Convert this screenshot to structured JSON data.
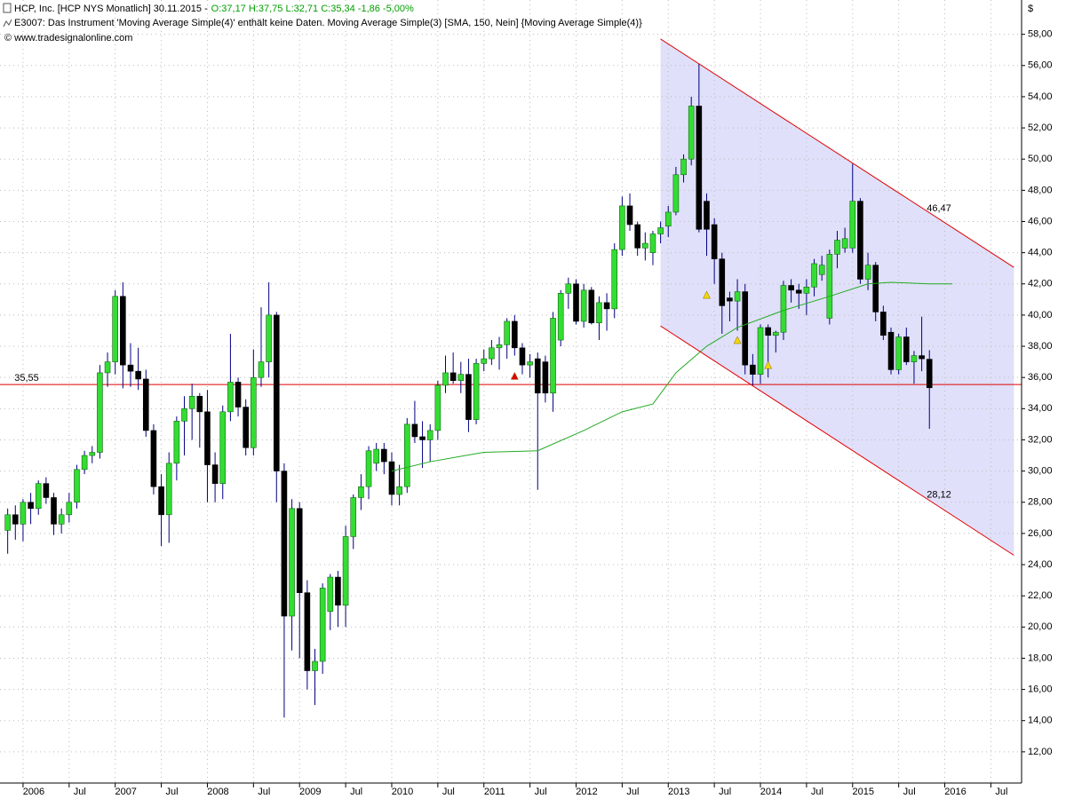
{
  "chart_data": {
    "type": "candlestick",
    "title": "HCP, Inc. [HCP NYS  Monatlich] 30.11.2015 -",
    "quote": "O:37,17 H:37,75 L:32,71 C:35,34 -1,86 -5,00%",
    "subtitle": "E3007: Das Instrument 'Moving Average Simple(4)' enthält keine Daten. Moving Average Simple(3) [SMA, 150, Nein] {Moving Average Simple(4)}",
    "source": "© www.tradesignalonline.com",
    "currency": "$",
    "x": [
      "2005-11",
      "2005-12",
      "2006-01",
      "2006-02",
      "2006-03",
      "2006-04",
      "2006-05",
      "2006-06",
      "2006-07",
      "2006-08",
      "2006-09",
      "2006-10",
      "2006-11",
      "2006-12",
      "2007-01",
      "2007-02",
      "2007-03",
      "2007-04",
      "2007-05",
      "2007-06",
      "2007-07",
      "2007-08",
      "2007-09",
      "2007-10",
      "2007-11",
      "2007-12",
      "2008-01",
      "2008-02",
      "2008-03",
      "2008-04",
      "2008-05",
      "2008-06",
      "2008-07",
      "2008-08",
      "2008-09",
      "2008-10",
      "2008-11",
      "2008-12",
      "2009-01",
      "2009-02",
      "2009-03",
      "2009-04",
      "2009-05",
      "2009-06",
      "2009-07",
      "2009-08",
      "2009-09",
      "2009-10",
      "2009-11",
      "2009-12",
      "2010-01",
      "2010-02",
      "2010-03",
      "2010-04",
      "2010-05",
      "2010-06",
      "2010-07",
      "2010-08",
      "2010-09",
      "2010-10",
      "2010-11",
      "2010-12",
      "2011-01",
      "2011-02",
      "2011-03",
      "2011-04",
      "2011-05",
      "2011-06",
      "2011-07",
      "2011-08",
      "2011-09",
      "2011-10",
      "2011-11",
      "2011-12",
      "2012-01",
      "2012-02",
      "2012-03",
      "2012-04",
      "2012-05",
      "2012-06",
      "2012-07",
      "2012-08",
      "2012-09",
      "2012-10",
      "2012-11",
      "2012-12",
      "2013-01",
      "2013-02",
      "2013-03",
      "2013-04",
      "2013-05",
      "2013-06",
      "2013-07",
      "2013-08",
      "2013-09",
      "2013-10",
      "2013-11",
      "2013-12",
      "2014-01",
      "2014-02",
      "2014-03",
      "2014-04",
      "2014-05",
      "2014-06",
      "2014-07",
      "2014-08",
      "2014-09",
      "2014-10",
      "2014-11",
      "2014-12",
      "2015-01",
      "2015-02",
      "2015-03",
      "2015-04",
      "2015-05",
      "2015-06",
      "2015-07",
      "2015-08",
      "2015-09",
      "2015-10",
      "2015-11"
    ],
    "open": [
      26.2,
      27.2,
      26.6,
      28.0,
      27.6,
      29.2,
      28.3,
      26.6,
      27.2,
      28.0,
      30.1,
      31.0,
      31.2,
      36.3,
      37.0,
      41.2,
      36.8,
      36.4,
      35.9,
      32.6,
      29.0,
      27.2,
      30.5,
      33.2,
      34.0,
      34.8,
      33.8,
      30.4,
      29.2,
      33.8,
      35.7,
      34.1,
      31.5,
      36.0,
      37.0,
      40.0,
      30.0,
      20.7,
      27.6,
      22.2,
      17.2,
      17.8,
      21.0,
      23.2,
      21.4,
      25.8,
      28.3,
      29.0,
      30.5,
      31.4,
      30.6,
      28.5,
      29.0,
      33.0,
      32.2,
      32.0,
      32.6,
      35.5,
      36.3,
      35.8,
      36.2,
      33.3,
      36.9,
      37.2,
      37.9,
      38.1,
      39.6,
      37.9,
      36.8,
      37.2,
      37.0,
      35.0,
      38.4,
      41.4,
      42.0,
      39.6,
      41.6,
      39.5,
      40.8,
      40.4,
      44.2,
      47.0,
      45.8,
      44.3,
      44.0,
      45.2,
      45.7,
      46.6,
      49.0,
      50.0,
      53.4,
      47.3,
      45.8,
      43.6,
      41.1,
      40.9,
      41.5,
      36.8,
      36.2,
      39.2,
      38.7,
      38.9,
      41.9,
      41.6,
      41.4,
      41.8,
      42.6,
      39.8,
      43.9,
      44.3,
      44.3,
      47.3,
      42.3,
      43.2,
      40.2,
      38.9,
      36.5,
      38.6,
      37.0,
      37.4,
      37.17
    ],
    "high": [
      27.6,
      27.8,
      28.2,
      28.6,
      29.4,
      29.6,
      28.6,
      27.6,
      28.6,
      30.4,
      31.3,
      31.6,
      36.8,
      37.6,
      41.6,
      42.1,
      38.2,
      37.9,
      36.5,
      33.0,
      29.8,
      31.2,
      33.5,
      34.8,
      35.6,
      35.0,
      35.2,
      31.2,
      34.2,
      38.8,
      36.0,
      34.6,
      37.8,
      40.5,
      42.1,
      40.2,
      30.5,
      28.2,
      28.0,
      23.0,
      18.6,
      22.8,
      23.4,
      23.6,
      26.5,
      28.5,
      29.8,
      31.6,
      31.8,
      31.8,
      31.2,
      30.4,
      33.4,
      34.5,
      33.2,
      33.0,
      35.8,
      37.4,
      37.6,
      37.0,
      37.2,
      37.2,
      37.8,
      38.4,
      38.6,
      39.8,
      40.0,
      38.2,
      37.5,
      37.6,
      37.4,
      40.2,
      41.6,
      42.4,
      42.3,
      42.0,
      41.8,
      41.2,
      41.4,
      44.6,
      47.6,
      47.8,
      46.0,
      45.3,
      45.4,
      46.0,
      47.0,
      49.5,
      50.3,
      54.0,
      56.1,
      47.8,
      46.2,
      44.0,
      41.5,
      42.3,
      42.0,
      37.5,
      39.4,
      39.4,
      39.0,
      42.2,
      42.3,
      42.0,
      42.3,
      43.6,
      43.8,
      44.2,
      45.4,
      45.6,
      49.7,
      47.5,
      44.0,
      43.4,
      40.6,
      39.2,
      38.8,
      39.2,
      37.7,
      39.9,
      37.75
    ],
    "low": [
      24.7,
      25.6,
      25.5,
      26.6,
      27.2,
      27.9,
      25.9,
      26.0,
      26.7,
      27.6,
      29.8,
      30.5,
      30.8,
      35.4,
      36.2,
      35.3,
      35.4,
      35.2,
      32.2,
      28.5,
      25.2,
      25.4,
      29.4,
      31.0,
      32.0,
      31.5,
      28.0,
      28.0,
      28.2,
      33.2,
      33.5,
      31.0,
      31.0,
      35.4,
      36.0,
      28.0,
      14.2,
      18.5,
      18.0,
      16.0,
      15.0,
      17.0,
      19.8,
      20.0,
      20.0,
      25.0,
      27.5,
      28.2,
      30.0,
      29.8,
      27.8,
      27.8,
      28.6,
      31.8,
      30.2,
      30.6,
      32.0,
      35.0,
      35.6,
      35.0,
      32.5,
      33.0,
      36.4,
      36.8,
      36.5,
      37.2,
      37.4,
      36.2,
      36.0,
      28.8,
      34.4,
      33.8,
      38.0,
      40.4,
      39.4,
      39.2,
      39.4,
      38.4,
      39.0,
      39.8,
      43.8,
      45.4,
      43.8,
      43.5,
      43.2,
      44.6,
      45.0,
      46.4,
      48.5,
      49.6,
      45.3,
      43.8,
      42.0,
      38.8,
      39.6,
      39.0,
      36.2,
      35.5,
      35.6,
      36.0,
      37.6,
      38.4,
      40.8,
      40.4,
      40.0,
      41.2,
      42.2,
      39.4,
      43.0,
      44.0,
      44.0,
      42.0,
      41.6,
      39.6,
      38.4,
      36.2,
      36.2,
      36.8,
      35.6,
      36.4,
      32.71
    ],
    "close": [
      27.2,
      26.6,
      28.0,
      27.6,
      29.2,
      28.3,
      26.6,
      27.2,
      28.0,
      30.1,
      31.0,
      31.2,
      36.3,
      37.0,
      41.2,
      36.8,
      36.4,
      35.9,
      32.6,
      29.0,
      27.2,
      30.5,
      33.2,
      34.0,
      34.8,
      33.8,
      30.4,
      29.2,
      33.8,
      35.7,
      34.1,
      31.5,
      36.0,
      37.0,
      40.0,
      30.0,
      20.7,
      27.6,
      22.2,
      17.2,
      17.8,
      22.5,
      23.2,
      21.4,
      25.8,
      28.3,
      29.0,
      31.3,
      31.4,
      30.6,
      28.5,
      29.0,
      33.0,
      32.2,
      32.0,
      32.6,
      35.5,
      36.3,
      35.8,
      36.2,
      33.3,
      36.9,
      37.2,
      37.9,
      38.1,
      39.6,
      37.9,
      36.8,
      37.0,
      35.0,
      35.0,
      39.8,
      41.4,
      42.0,
      39.6,
      41.6,
      39.5,
      40.8,
      40.4,
      44.2,
      47.0,
      45.8,
      44.3,
      44.6,
      45.2,
      45.6,
      46.6,
      49.0,
      50.0,
      53.4,
      45.5,
      45.5,
      43.6,
      40.6,
      40.9,
      41.5,
      36.8,
      36.2,
      39.2,
      38.7,
      38.9,
      41.9,
      41.6,
      41.4,
      41.8,
      43.3,
      43.2,
      43.9,
      44.8,
      44.9,
      47.3,
      42.3,
      43.2,
      40.2,
      38.7,
      36.5,
      38.6,
      37.0,
      37.4,
      37.2,
      35.34
    ],
    "up_color": "#33dd33",
    "down_color": "#000000",
    "wick_color": "#000080",
    "sma": {
      "color": "#22aa22",
      "x": [
        "2010-01",
        "2010-06",
        "2011-01",
        "2011-08",
        "2012-02",
        "2012-07",
        "2012-11",
        "2013-02",
        "2013-06",
        "2013-10",
        "2014-04",
        "2014-10",
        "2015-03",
        "2015-06",
        "2015-11",
        "2016-02"
      ],
      "values": [
        30.0,
        30.6,
        31.2,
        31.3,
        32.6,
        33.8,
        34.3,
        36.3,
        38.0,
        39.2,
        40.3,
        41.2,
        42.0,
        42.1,
        42.0,
        42.0
      ]
    },
    "hline": {
      "value": 35.55,
      "label": "35,55",
      "color": "#e00000"
    },
    "channel": {
      "x": [
        "2012-12",
        "2016-10"
      ],
      "upper": [
        57.7,
        43.06
      ],
      "lower": [
        39.3,
        24.6
      ],
      "color": "#e00000",
      "fill": "#e0e0fa",
      "upper_label": {
        "value": 46.47,
        "label": "46,47"
      },
      "lower_label": {
        "value": 28.12,
        "label": "28,12"
      }
    },
    "markers": [
      {
        "x": "2011-05",
        "value": 36.1,
        "color": "#e00000"
      },
      {
        "x": "2013-06",
        "value": 41.3,
        "color": "#f5d800"
      },
      {
        "x": "2013-10",
        "value": 38.4,
        "color": "#f5d800"
      },
      {
        "x": "2014-02",
        "value": 36.8,
        "color": "#f5d800"
      }
    ],
    "xlim": [
      "2005-10",
      "2016-11"
    ],
    "xticks": [
      {
        "value": "2006-01",
        "label": "2006"
      },
      {
        "value": "2006-07",
        "label": "Jul"
      },
      {
        "value": "2007-01",
        "label": "2007"
      },
      {
        "value": "2007-07",
        "label": "Jul"
      },
      {
        "value": "2008-01",
        "label": "2008"
      },
      {
        "value": "2008-07",
        "label": "Jul"
      },
      {
        "value": "2009-01",
        "label": "2009"
      },
      {
        "value": "2009-07",
        "label": "Jul"
      },
      {
        "value": "2010-01",
        "label": "2010"
      },
      {
        "value": "2010-07",
        "label": "Jul"
      },
      {
        "value": "2011-01",
        "label": "2011"
      },
      {
        "value": "2011-07",
        "label": "Jul"
      },
      {
        "value": "2012-01",
        "label": "2012"
      },
      {
        "value": "2012-07",
        "label": "Jul"
      },
      {
        "value": "2013-01",
        "label": "2013"
      },
      {
        "value": "2013-07",
        "label": "Jul"
      },
      {
        "value": "2014-01",
        "label": "2014"
      },
      {
        "value": "2014-07",
        "label": "Jul"
      },
      {
        "value": "2015-01",
        "label": "2015"
      },
      {
        "value": "2015-07",
        "label": "Jul"
      },
      {
        "value": "2016-01",
        "label": "2016"
      },
      {
        "value": "2016-07",
        "label": "Jul"
      }
    ],
    "ylim": [
      10,
      60.2
    ],
    "yticks": [
      {
        "value": 12,
        "label": "12,00"
      },
      {
        "value": 14,
        "label": "14,00"
      },
      {
        "value": 16,
        "label": "16,00"
      },
      {
        "value": 18,
        "label": "18,00"
      },
      {
        "value": 20,
        "label": "20,00"
      },
      {
        "value": 22,
        "label": "22,00"
      },
      {
        "value": 24,
        "label": "24,00"
      },
      {
        "value": 26,
        "label": "26,00"
      },
      {
        "value": 28,
        "label": "28,00"
      },
      {
        "value": 30,
        "label": "30,00"
      },
      {
        "value": 32,
        "label": "32,00"
      },
      {
        "value": 34,
        "label": "34,00"
      },
      {
        "value": 36,
        "label": "36,00"
      },
      {
        "value": 38,
        "label": "38,00"
      },
      {
        "value": 40,
        "label": "40,00"
      },
      {
        "value": 42,
        "label": "42,00"
      },
      {
        "value": 44,
        "label": "44,00"
      },
      {
        "value": 46,
        "label": "46,00"
      },
      {
        "value": 48,
        "label": "48,00"
      },
      {
        "value": 50,
        "label": "50,00"
      },
      {
        "value": 52,
        "label": "52,00"
      },
      {
        "value": 54,
        "label": "54,00"
      },
      {
        "value": 56,
        "label": "56,00"
      },
      {
        "value": 58,
        "label": "58,00"
      }
    ],
    "grid": true
  }
}
